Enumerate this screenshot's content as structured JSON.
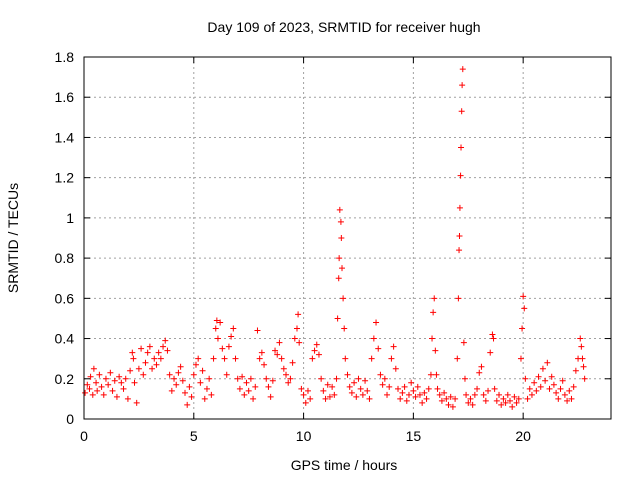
{
  "chart_data": {
    "type": "scatter",
    "title": "Day 109 of 2023, SRMTID for receiver hugh",
    "xlabel": "GPS time / hours",
    "ylabel": "SRMTID / TECUs",
    "xlim": [
      0,
      24
    ],
    "ylim": [
      0,
      1.8
    ],
    "xticks": [
      0,
      5,
      10,
      15,
      20
    ],
    "xtick_labels": [
      "0",
      "5",
      "10",
      "15",
      "20"
    ],
    "yticks": [
      0,
      0.2,
      0.4,
      0.6,
      0.8,
      1,
      1.2,
      1.4,
      1.6,
      1.8
    ],
    "ytick_labels": [
      "0",
      "0.2",
      "0.4",
      "0.6",
      "0.8",
      "1",
      "1.2",
      "1.4",
      "1.6",
      "1.8"
    ],
    "grid": true,
    "legend": "none",
    "marker": "plus",
    "colors": {
      "marker": "#ff0000",
      "axes": "#000000",
      "grid": "#a0a0a0",
      "background": "#ffffff"
    },
    "series": [
      {
        "name": "SRMTID",
        "points": [
          [
            0.05,
            0.13
          ],
          [
            0.15,
            0.17
          ],
          [
            0.25,
            0.15
          ],
          [
            0.3,
            0.21
          ],
          [
            0.4,
            0.12
          ],
          [
            0.45,
            0.25
          ],
          [
            0.55,
            0.18
          ],
          [
            0.6,
            0.14
          ],
          [
            0.7,
            0.22
          ],
          [
            0.8,
            0.16
          ],
          [
            0.9,
            0.12
          ],
          [
            1.0,
            0.2
          ],
          [
            1.1,
            0.17
          ],
          [
            1.2,
            0.23
          ],
          [
            1.3,
            0.14
          ],
          [
            1.4,
            0.19
          ],
          [
            1.5,
            0.11
          ],
          [
            1.6,
            0.21
          ],
          [
            1.7,
            0.18
          ],
          [
            1.8,
            0.15
          ],
          [
            1.9,
            0.2
          ],
          [
            2.0,
            0.1
          ],
          [
            2.1,
            0.24
          ],
          [
            2.2,
            0.33
          ],
          [
            2.25,
            0.3
          ],
          [
            2.3,
            0.18
          ],
          [
            2.4,
            0.08
          ],
          [
            2.5,
            0.25
          ],
          [
            2.6,
            0.35
          ],
          [
            2.7,
            0.22
          ],
          [
            2.8,
            0.28
          ],
          [
            2.9,
            0.33
          ],
          [
            3.0,
            0.36
          ],
          [
            3.1,
            0.25
          ],
          [
            3.2,
            0.3
          ],
          [
            3.3,
            0.27
          ],
          [
            3.4,
            0.33
          ],
          [
            3.5,
            0.3
          ],
          [
            3.6,
            0.36
          ],
          [
            3.7,
            0.39
          ],
          [
            3.8,
            0.34
          ],
          [
            3.9,
            0.22
          ],
          [
            4.0,
            0.14
          ],
          [
            4.1,
            0.2
          ],
          [
            4.2,
            0.17
          ],
          [
            4.3,
            0.23
          ],
          [
            4.4,
            0.26
          ],
          [
            4.5,
            0.19
          ],
          [
            4.6,
            0.13
          ],
          [
            4.7,
            0.07
          ],
          [
            4.8,
            0.16
          ],
          [
            4.9,
            0.11
          ],
          [
            5.0,
            0.22
          ],
          [
            5.1,
            0.27
          ],
          [
            5.2,
            0.3
          ],
          [
            5.3,
            0.18
          ],
          [
            5.4,
            0.24
          ],
          [
            5.5,
            0.1
          ],
          [
            5.6,
            0.15
          ],
          [
            5.7,
            0.2
          ],
          [
            5.8,
            0.12
          ],
          [
            5.9,
            0.3
          ],
          [
            6.0,
            0.45
          ],
          [
            6.05,
            0.49
          ],
          [
            6.1,
            0.4
          ],
          [
            6.2,
            0.48
          ],
          [
            6.3,
            0.35
          ],
          [
            6.4,
            0.3
          ],
          [
            6.5,
            0.22
          ],
          [
            6.6,
            0.36
          ],
          [
            6.7,
            0.41
          ],
          [
            6.8,
            0.45
          ],
          [
            6.9,
            0.3
          ],
          [
            7.0,
            0.2
          ],
          [
            7.1,
            0.15
          ],
          [
            7.2,
            0.21
          ],
          [
            7.3,
            0.12
          ],
          [
            7.4,
            0.18
          ],
          [
            7.5,
            0.14
          ],
          [
            7.6,
            0.2
          ],
          [
            7.7,
            0.1
          ],
          [
            7.8,
            0.16
          ],
          [
            7.9,
            0.44
          ],
          [
            8.0,
            0.3
          ],
          [
            8.1,
            0.33
          ],
          [
            8.2,
            0.27
          ],
          [
            8.3,
            0.2
          ],
          [
            8.4,
            0.16
          ],
          [
            8.5,
            0.11
          ],
          [
            8.6,
            0.19
          ],
          [
            8.7,
            0.34
          ],
          [
            8.8,
            0.32
          ],
          [
            8.9,
            0.38
          ],
          [
            9.0,
            0.3
          ],
          [
            9.1,
            0.25
          ],
          [
            9.2,
            0.22
          ],
          [
            9.3,
            0.18
          ],
          [
            9.4,
            0.2
          ],
          [
            9.5,
            0.28
          ],
          [
            9.6,
            0.4
          ],
          [
            9.7,
            0.45
          ],
          [
            9.75,
            0.52
          ],
          [
            9.8,
            0.38
          ],
          [
            9.9,
            0.15
          ],
          [
            10.0,
            0.12
          ],
          [
            10.1,
            0.08
          ],
          [
            10.2,
            0.14
          ],
          [
            10.3,
            0.1
          ],
          [
            10.4,
            0.3
          ],
          [
            10.5,
            0.34
          ],
          [
            10.6,
            0.37
          ],
          [
            10.7,
            0.32
          ],
          [
            10.8,
            0.2
          ],
          [
            10.9,
            0.14
          ],
          [
            11.0,
            0.1
          ],
          [
            11.1,
            0.17
          ],
          [
            11.2,
            0.11
          ],
          [
            11.3,
            0.16
          ],
          [
            11.4,
            0.12
          ],
          [
            11.5,
            0.2
          ],
          [
            11.55,
            0.5
          ],
          [
            11.6,
            0.7
          ],
          [
            11.62,
            0.8
          ],
          [
            11.65,
            1.04
          ],
          [
            11.7,
            0.98
          ],
          [
            11.72,
            0.9
          ],
          [
            11.75,
            0.75
          ],
          [
            11.8,
            0.6
          ],
          [
            11.85,
            0.45
          ],
          [
            11.9,
            0.3
          ],
          [
            12.0,
            0.22
          ],
          [
            12.1,
            0.16
          ],
          [
            12.2,
            0.13
          ],
          [
            12.3,
            0.18
          ],
          [
            12.4,
            0.11
          ],
          [
            12.5,
            0.2
          ],
          [
            12.6,
            0.15
          ],
          [
            12.7,
            0.12
          ],
          [
            12.8,
            0.19
          ],
          [
            12.9,
            0.14
          ],
          [
            13.0,
            0.1
          ],
          [
            13.1,
            0.3
          ],
          [
            13.2,
            0.4
          ],
          [
            13.3,
            0.48
          ],
          [
            13.4,
            0.35
          ],
          [
            13.5,
            0.22
          ],
          [
            13.6,
            0.17
          ],
          [
            13.7,
            0.2
          ],
          [
            13.8,
            0.12
          ],
          [
            13.9,
            0.16
          ],
          [
            14.0,
            0.3
          ],
          [
            14.1,
            0.36
          ],
          [
            14.2,
            0.25
          ],
          [
            14.3,
            0.15
          ],
          [
            14.4,
            0.1
          ],
          [
            14.5,
            0.13
          ],
          [
            14.6,
            0.16
          ],
          [
            14.7,
            0.09
          ],
          [
            14.8,
            0.12
          ],
          [
            14.9,
            0.18
          ],
          [
            15.0,
            0.14
          ],
          [
            15.1,
            0.11
          ],
          [
            15.2,
            0.16
          ],
          [
            15.3,
            0.12
          ],
          [
            15.4,
            0.08
          ],
          [
            15.5,
            0.13
          ],
          [
            15.6,
            0.1
          ],
          [
            15.7,
            0.15
          ],
          [
            15.8,
            0.22
          ],
          [
            15.85,
            0.4
          ],
          [
            15.9,
            0.53
          ],
          [
            15.95,
            0.6
          ],
          [
            16.0,
            0.34
          ],
          [
            16.05,
            0.22
          ],
          [
            16.1,
            0.15
          ],
          [
            16.2,
            0.12
          ],
          [
            16.3,
            0.09
          ],
          [
            16.4,
            0.13
          ],
          [
            16.5,
            0.1
          ],
          [
            16.6,
            0.07
          ],
          [
            16.7,
            0.11
          ],
          [
            16.8,
            0.06
          ],
          [
            16.9,
            0.1
          ],
          [
            17.0,
            0.3
          ],
          [
            17.05,
            0.6
          ],
          [
            17.08,
            0.84
          ],
          [
            17.1,
            0.91
          ],
          [
            17.12,
            1.05
          ],
          [
            17.15,
            1.21
          ],
          [
            17.17,
            1.35
          ],
          [
            17.2,
            1.53
          ],
          [
            17.22,
            1.66
          ],
          [
            17.25,
            1.74
          ],
          [
            17.3,
            0.38
          ],
          [
            17.35,
            0.2
          ],
          [
            17.4,
            0.12
          ],
          [
            17.5,
            0.08
          ],
          [
            17.6,
            0.1
          ],
          [
            17.7,
            0.07
          ],
          [
            17.8,
            0.12
          ],
          [
            17.9,
            0.15
          ],
          [
            18.0,
            0.23
          ],
          [
            18.1,
            0.26
          ],
          [
            18.2,
            0.12
          ],
          [
            18.3,
            0.09
          ],
          [
            18.4,
            0.14
          ],
          [
            18.5,
            0.33
          ],
          [
            18.6,
            0.42
          ],
          [
            18.65,
            0.4
          ],
          [
            18.7,
            0.15
          ],
          [
            18.8,
            0.09
          ],
          [
            18.9,
            0.12
          ],
          [
            19.0,
            0.07
          ],
          [
            19.1,
            0.1
          ],
          [
            19.2,
            0.08
          ],
          [
            19.3,
            0.12
          ],
          [
            19.4,
            0.09
          ],
          [
            19.5,
            0.06
          ],
          [
            19.6,
            0.11
          ],
          [
            19.7,
            0.08
          ],
          [
            19.8,
            0.1
          ],
          [
            19.9,
            0.3
          ],
          [
            19.95,
            0.45
          ],
          [
            20.0,
            0.61
          ],
          [
            20.05,
            0.55
          ],
          [
            20.1,
            0.2
          ],
          [
            20.2,
            0.1
          ],
          [
            20.3,
            0.15
          ],
          [
            20.4,
            0.12
          ],
          [
            20.5,
            0.18
          ],
          [
            20.6,
            0.14
          ],
          [
            20.7,
            0.21
          ],
          [
            20.8,
            0.16
          ],
          [
            20.9,
            0.25
          ],
          [
            21.0,
            0.19
          ],
          [
            21.1,
            0.28
          ],
          [
            21.2,
            0.15
          ],
          [
            21.3,
            0.21
          ],
          [
            21.4,
            0.17
          ],
          [
            21.5,
            0.13
          ],
          [
            21.6,
            0.1
          ],
          [
            21.7,
            0.15
          ],
          [
            21.8,
            0.19
          ],
          [
            21.9,
            0.12
          ],
          [
            22.0,
            0.09
          ],
          [
            22.1,
            0.14
          ],
          [
            22.2,
            0.1
          ],
          [
            22.3,
            0.16
          ],
          [
            22.4,
            0.24
          ],
          [
            22.5,
            0.3
          ],
          [
            22.6,
            0.4
          ],
          [
            22.65,
            0.36
          ],
          [
            22.7,
            0.3
          ],
          [
            22.75,
            0.26
          ],
          [
            22.8,
            0.2
          ]
        ]
      }
    ]
  }
}
